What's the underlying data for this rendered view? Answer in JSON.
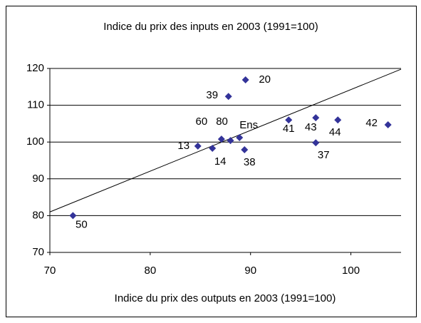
{
  "chart_data": {
    "type": "scatter",
    "title": "Indice du prix des inputs en 2003 (1991=100)",
    "x_label": "Indice du prix des outputs en 2003 (1991=100)",
    "color": "#333399",
    "points": [
      "50",
      "13",
      "14",
      "60",
      "80",
      "Ens",
      "38",
      "39",
      "20",
      "41",
      "43",
      "37",
      "44",
      "42"
    ],
    "x": [
      72.3,
      84.75,
      86.2,
      87.1,
      88.0,
      88.9,
      89.4,
      87.8,
      89.5,
      93.8,
      96.5,
      96.5,
      98.7,
      103.7
    ],
    "values": [
      80,
      98.9,
      98.3,
      100.8,
      100.4,
      101.2,
      97.9,
      112.4,
      116.9,
      106.0,
      106.6,
      99.8,
      106.0,
      104.7
    ],
    "trendline": {
      "x": [
        70,
        105
      ],
      "y": [
        81,
        119.8
      ]
    },
    "xlim": [
      70,
      105
    ],
    "xticks": [
      70,
      80,
      90,
      100
    ],
    "ylim": [
      70,
      120
    ],
    "yticks": [
      70,
      80,
      90,
      100,
      110,
      120
    ],
    "grid": true
  }
}
